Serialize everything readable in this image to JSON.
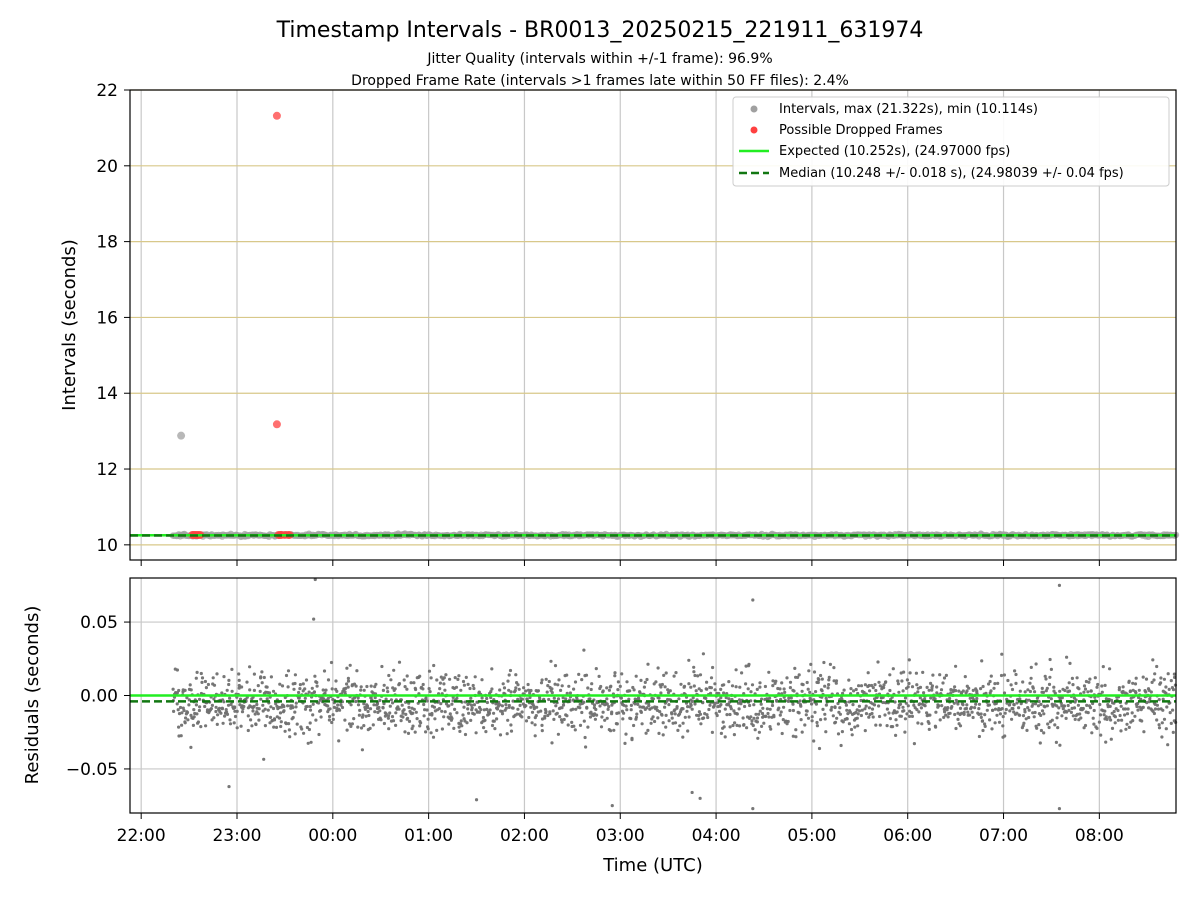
{
  "chart_data": [
    {
      "type": "scatter",
      "title": "Timestamp Intervals - BR0013_20250215_221911_631974",
      "subtitle_1": "Jitter Quality (intervals within +/-1 frame): 96.9%",
      "subtitle_2": "Dropped Frame Rate (intervals >1 frames late within 50 FF files): 2.4%",
      "xlabel": "",
      "ylabel": "Intervals (seconds)",
      "ylim": [
        9.6,
        22
      ],
      "yticks": [
        10,
        12,
        14,
        16,
        18,
        20,
        22
      ],
      "ytick_labels": [
        "10",
        "12",
        "14",
        "16",
        "18",
        "20",
        "22"
      ],
      "grid": true,
      "legend_placement": "top-right",
      "series": [
        {
          "name": "Intervals, max (21.322s), min (10.114s)",
          "color": "#a0a0a0",
          "kind": "scatter",
          "band": {
            "x_start": "22:20",
            "x_end": "08:48",
            "center": 10.252,
            "spread": 0.03
          },
          "outliers": [
            {
              "x": "22:25",
              "y": 12.88
            }
          ]
        },
        {
          "name": "Possible Dropped Frames",
          "color": "#ff4040",
          "kind": "scatter",
          "points": [
            {
              "x": "23:25",
              "y": 21.32
            },
            {
              "x": "23:25",
              "y": 13.18
            },
            {
              "x": "22:32",
              "y": 10.26
            },
            {
              "x": "22:33",
              "y": 10.26
            },
            {
              "x": "22:34",
              "y": 10.26
            },
            {
              "x": "22:35",
              "y": 10.26
            },
            {
              "x": "22:36",
              "y": 10.26
            },
            {
              "x": "22:37",
              "y": 10.26
            },
            {
              "x": "23:26",
              "y": 10.26
            },
            {
              "x": "23:27",
              "y": 10.26
            },
            {
              "x": "23:28",
              "y": 10.26
            },
            {
              "x": "23:30",
              "y": 10.26
            },
            {
              "x": "23:32",
              "y": 10.26
            },
            {
              "x": "23:33",
              "y": 10.26
            }
          ]
        },
        {
          "name": "Expected (10.252s), (24.97000 fps)",
          "color": "#22ee22",
          "kind": "hline",
          "y": 10.252
        },
        {
          "name": "Median (10.248 +/- 0.018 s), (24.98039 +/- 0.04 fps)",
          "color": "#117711",
          "kind": "hline-dashed",
          "y": 10.248
        }
      ]
    },
    {
      "type": "scatter",
      "xlabel": "Time (UTC)",
      "ylabel": "Residuals (seconds)",
      "ylim": [
        -0.08,
        0.08
      ],
      "yticks": [
        -0.05,
        0.0,
        0.05
      ],
      "ytick_labels": [
        "−0.05",
        "0.00",
        "0.05"
      ],
      "xlim": [
        "21:53",
        "08:48"
      ],
      "xticks": [
        "22:00",
        "23:00",
        "00:00",
        "01:00",
        "02:00",
        "03:00",
        "04:00",
        "05:00",
        "06:00",
        "07:00",
        "08:00"
      ],
      "grid": true,
      "series": [
        {
          "name": "",
          "color": "#707070",
          "kind": "scatter",
          "band": {
            "x_start": "22:20",
            "x_end": "08:48",
            "center": -0.005,
            "spread": 0.02,
            "count": 2200
          },
          "outliers": [
            {
              "x": "23:49",
              "y": 0.079
            },
            {
              "x": "23:48",
              "y": 0.052
            },
            {
              "x": "04:23",
              "y": 0.065
            },
            {
              "x": "07:35",
              "y": 0.075
            },
            {
              "x": "01:30",
              "y": -0.071
            },
            {
              "x": "02:55",
              "y": -0.075
            },
            {
              "x": "03:45",
              "y": -0.066
            },
            {
              "x": "03:50",
              "y": -0.07
            },
            {
              "x": "04:23",
              "y": -0.077
            },
            {
              "x": "07:35",
              "y": -0.077
            },
            {
              "x": "22:55",
              "y": -0.062
            }
          ]
        },
        {
          "name": "",
          "color": "#22ee22",
          "kind": "hline",
          "y": 0.0
        },
        {
          "name": "",
          "color": "#117711",
          "kind": "hline-dashed",
          "y": -0.004
        }
      ]
    }
  ]
}
